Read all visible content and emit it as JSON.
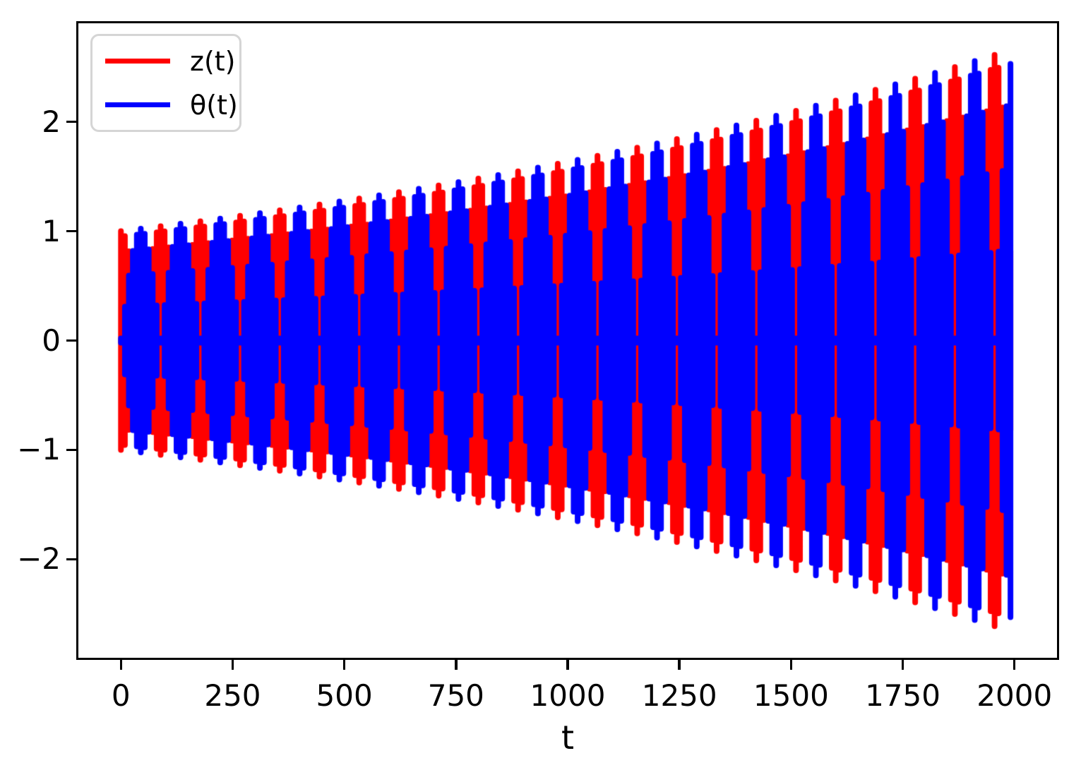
{
  "axes": {
    "xlabel": "t",
    "ylabel": "",
    "xtick_labels": [
      "0",
      "250",
      "500",
      "750",
      "1000",
      "1250",
      "1500",
      "1750",
      "2000"
    ],
    "ytick_labels": [
      "−2",
      "−1",
      "0",
      "1",
      "2"
    ],
    "spine_color": "#000000",
    "background": "#ffffff"
  },
  "legend": {
    "position": "upper left",
    "entries": [
      {
        "label": "z(t)",
        "color": "#ff0000"
      },
      {
        "label": "θ(t)",
        "color": "#0000ff"
      }
    ]
  },
  "chart_data": {
    "type": "line",
    "title": "",
    "xlabel": "t",
    "ylabel": "",
    "xlim": [
      -100,
      2100
    ],
    "ylim": [
      -2.92,
      2.92
    ],
    "xticks": [
      0,
      250,
      500,
      750,
      1000,
      1250,
      1500,
      1750,
      2000
    ],
    "yticks": [
      -2,
      -1,
      0,
      1,
      2
    ],
    "grid": false,
    "legend_position": "upper left",
    "series": [
      {
        "name": "z(t)",
        "color": "#ff0000",
        "description": "Rapid oscillation (unresolved at this scale) with beating envelope A(t)*|cos(pi*t/88.89)|; drawn first, partially hidden by theta(t)."
      },
      {
        "name": "θ(t)",
        "color": "#0000ff",
        "description": "Rapid oscillation (unresolved at this scale) with beating envelope A(t)*|sin(pi*t/88.89)|, anti-phased with z(t); drawn on top."
      }
    ],
    "model": {
      "t_min": 0,
      "t_max": 2000,
      "beat_period": 88.889,
      "n_beats": 22.5,
      "amplitude_start": 1.0,
      "amplitude_end": 2.67,
      "amplitude_growth": "exponential",
      "sample_step": 8.889,
      "stroke_px": 8,
      "min_envelope": 0.02
    },
    "envelope_peaks": {
      "z": {
        "t": [
          0,
          89,
          178,
          267,
          356,
          444,
          533,
          622,
          711,
          800,
          889,
          978,
          1067,
          1156,
          1244,
          1333,
          1422,
          1511,
          1600,
          1689,
          1778,
          1867,
          1956
        ],
        "amplitude": [
          1.0,
          1.04,
          1.09,
          1.14,
          1.19,
          1.24,
          1.3,
          1.36,
          1.42,
          1.48,
          1.55,
          1.62,
          1.69,
          1.76,
          1.84,
          1.92,
          2.01,
          2.1,
          2.19,
          2.29,
          2.39,
          2.5,
          2.61
        ]
      },
      "theta": {
        "t": [
          44,
          133,
          222,
          311,
          400,
          489,
          578,
          667,
          756,
          844,
          933,
          1022,
          1111,
          1200,
          1289,
          1378,
          1467,
          1556,
          1644,
          1733,
          1822,
          1911,
          2000
        ],
        "amplitude": [
          1.02,
          1.07,
          1.12,
          1.16,
          1.22,
          1.27,
          1.33,
          1.39,
          1.45,
          1.51,
          1.58,
          1.65,
          1.73,
          1.8,
          1.88,
          1.97,
          2.05,
          2.15,
          2.24,
          2.34,
          2.45,
          2.56,
          2.67
        ]
      }
    }
  }
}
